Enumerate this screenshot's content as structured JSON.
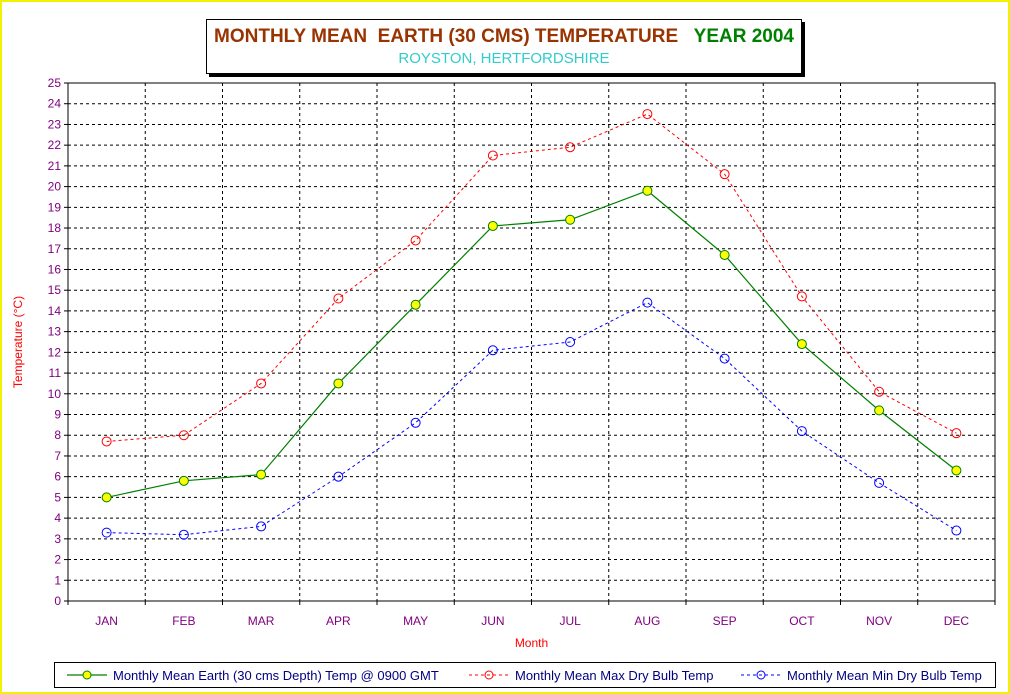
{
  "title": {
    "main": "MONTHLY MEAN  EARTH (30 CMS) TEMPERATURE",
    "year": "YEAR 2004",
    "subtitle": "ROYSTON, HERTFORDSHIRE"
  },
  "chart_data": {
    "type": "line",
    "xlabel": "Month",
    "ylabel": "Temperature (°C)",
    "ylim": [
      0,
      25
    ],
    "ytick_step": 1,
    "grid": true,
    "legend_position": "bottom",
    "categories": [
      "JAN",
      "FEB",
      "MAR",
      "APR",
      "MAY",
      "JUN",
      "JUL",
      "AUG",
      "SEP",
      "OCT",
      "NOV",
      "DEC"
    ],
    "series": [
      {
        "name": "Monthly Mean Earth (30 cms Depth) Temp @ 0900 GMT",
        "style": "solid",
        "color": "#008000",
        "marker_fill": "#ffff00",
        "values": [
          5.0,
          5.8,
          6.1,
          10.5,
          14.3,
          18.1,
          18.4,
          19.8,
          16.7,
          12.4,
          9.2,
          6.3
        ]
      },
      {
        "name": "Monthly Mean Max Dry Bulb Temp",
        "style": "dashed",
        "color": "#ff0000",
        "marker_fill": "none",
        "values": [
          7.7,
          8.0,
          10.5,
          14.6,
          17.4,
          21.5,
          21.9,
          23.5,
          20.6,
          14.7,
          10.1,
          8.1
        ]
      },
      {
        "name": "Monthly Mean Min Dry Bulb Temp",
        "style": "dashed",
        "color": "#0000ff",
        "marker_fill": "none",
        "values": [
          3.3,
          3.2,
          3.6,
          6.0,
          8.6,
          12.1,
          12.5,
          14.4,
          11.7,
          8.2,
          5.7,
          3.4
        ]
      }
    ]
  },
  "colors": {
    "frame": "#f2f200",
    "tick_labels_x": "#800080",
    "tick_labels_y": "#800080",
    "axis_title": "#ff0000"
  }
}
